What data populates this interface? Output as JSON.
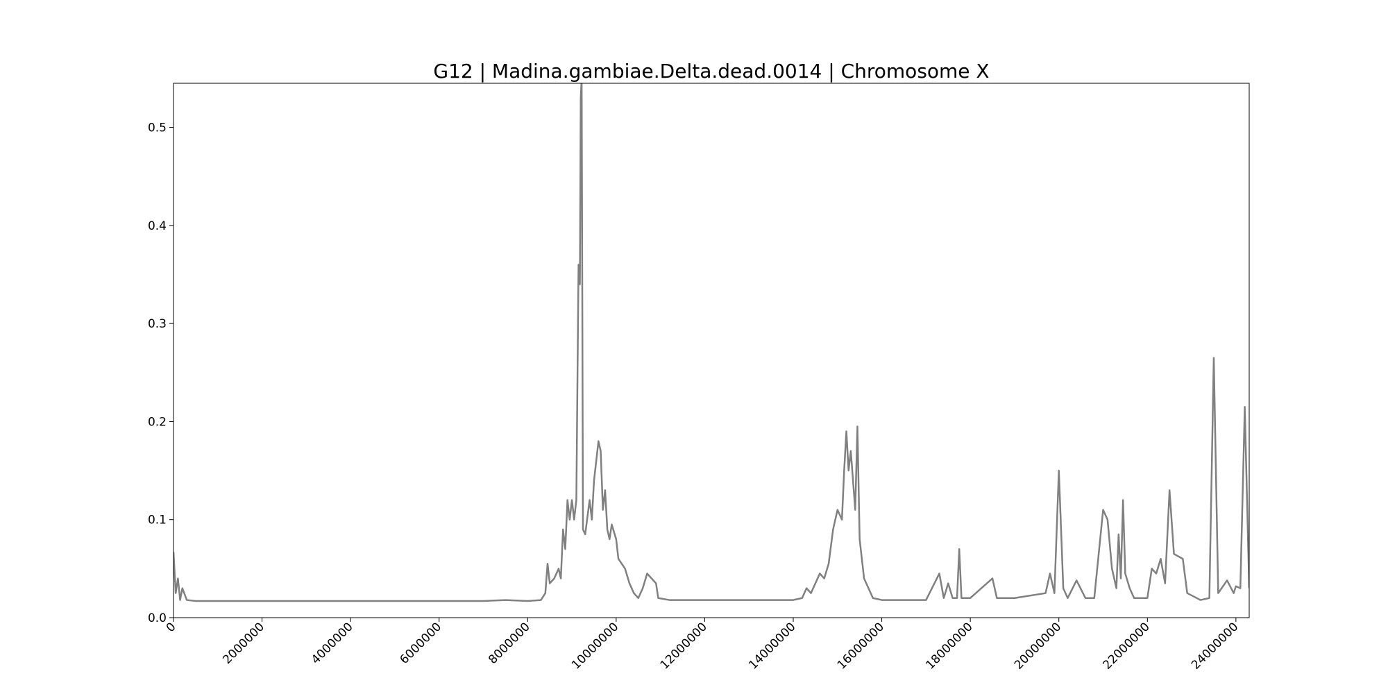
{
  "chart_data": {
    "type": "line",
    "title": "G12 | Madina.gambiae.Delta.dead.0014 | Chromosome X",
    "x": [
      0,
      50000,
      100000,
      150000,
      200000,
      300000,
      500000,
      1000000,
      2000000,
      3000000,
      4000000,
      5000000,
      6000000,
      7000000,
      7500000,
      8000000,
      8300000,
      8400000,
      8450000,
      8500000,
      8600000,
      8700000,
      8750000,
      8800000,
      8850000,
      8900000,
      8950000,
      9000000,
      9050000,
      9100000,
      9150000,
      9180000,
      9200000,
      9220000,
      9250000,
      9300000,
      9400000,
      9450000,
      9500000,
      9600000,
      9650000,
      9700000,
      9750000,
      9800000,
      9850000,
      9900000,
      10000000,
      10050000,
      10200000,
      10300000,
      10400000,
      10500000,
      10600000,
      10700000,
      10800000,
      10900000,
      10950000,
      11200000,
      12000000,
      13000000,
      14000000,
      14200000,
      14300000,
      14400000,
      14500000,
      14600000,
      14700000,
      14800000,
      14900000,
      15000000,
      15100000,
      15150000,
      15200000,
      15250000,
      15300000,
      15400000,
      15450000,
      15500000,
      15600000,
      15700000,
      15800000,
      16000000,
      17000000,
      17300000,
      17400000,
      17500000,
      17600000,
      17700000,
      17750000,
      17800000,
      18000000,
      18500000,
      18600000,
      19000000,
      19700000,
      19800000,
      19900000,
      20000000,
      20100000,
      20200000,
      20400000,
      20600000,
      20800000,
      21000000,
      21100000,
      21200000,
      21300000,
      21350000,
      21400000,
      21450000,
      21500000,
      21600000,
      21700000,
      22000000,
      22100000,
      22200000,
      22300000,
      22400000,
      22500000,
      22600000,
      22800000,
      22900000,
      23200000,
      23400000,
      23500000,
      23600000,
      23800000,
      23950000,
      24000000,
      24100000,
      24200000,
      24300000
    ],
    "values": [
      0.067,
      0.025,
      0.04,
      0.018,
      0.03,
      0.018,
      0.017,
      0.017,
      0.017,
      0.017,
      0.017,
      0.017,
      0.017,
      0.017,
      0.018,
      0.017,
      0.018,
      0.025,
      0.055,
      0.035,
      0.04,
      0.05,
      0.04,
      0.09,
      0.07,
      0.12,
      0.1,
      0.12,
      0.1,
      0.12,
      0.36,
      0.34,
      0.53,
      0.55,
      0.09,
      0.085,
      0.12,
      0.1,
      0.14,
      0.18,
      0.17,
      0.11,
      0.13,
      0.09,
      0.08,
      0.095,
      0.08,
      0.06,
      0.05,
      0.035,
      0.025,
      0.02,
      0.03,
      0.045,
      0.04,
      0.035,
      0.02,
      0.018,
      0.018,
      0.018,
      0.018,
      0.02,
      0.03,
      0.025,
      0.035,
      0.045,
      0.04,
      0.055,
      0.09,
      0.11,
      0.1,
      0.15,
      0.19,
      0.15,
      0.17,
      0.11,
      0.195,
      0.08,
      0.04,
      0.03,
      0.02,
      0.018,
      0.018,
      0.045,
      0.02,
      0.035,
      0.02,
      0.02,
      0.07,
      0.02,
      0.02,
      0.04,
      0.02,
      0.02,
      0.025,
      0.045,
      0.025,
      0.15,
      0.03,
      0.02,
      0.038,
      0.02,
      0.02,
      0.11,
      0.1,
      0.05,
      0.03,
      0.085,
      0.04,
      0.12,
      0.045,
      0.03,
      0.02,
      0.02,
      0.05,
      0.045,
      0.06,
      0.035,
      0.13,
      0.065,
      0.06,
      0.025,
      0.018,
      0.02,
      0.265,
      0.025,
      0.038,
      0.025,
      0.032,
      0.03,
      0.215,
      0.03
    ],
    "color": "#808080",
    "xlim": [
      0,
      24300000
    ],
    "xticks": [
      0,
      2000000,
      4000000,
      6000000,
      8000000,
      10000000,
      12000000,
      14000000,
      16000000,
      18000000,
      20000000,
      22000000,
      24000000
    ],
    "ylim": [
      0,
      0.545
    ],
    "yticks": [
      {
        "value": 0,
        "label": "0.0"
      },
      0.1,
      0.2,
      0.3,
      0.4,
      0.5
    ]
  }
}
